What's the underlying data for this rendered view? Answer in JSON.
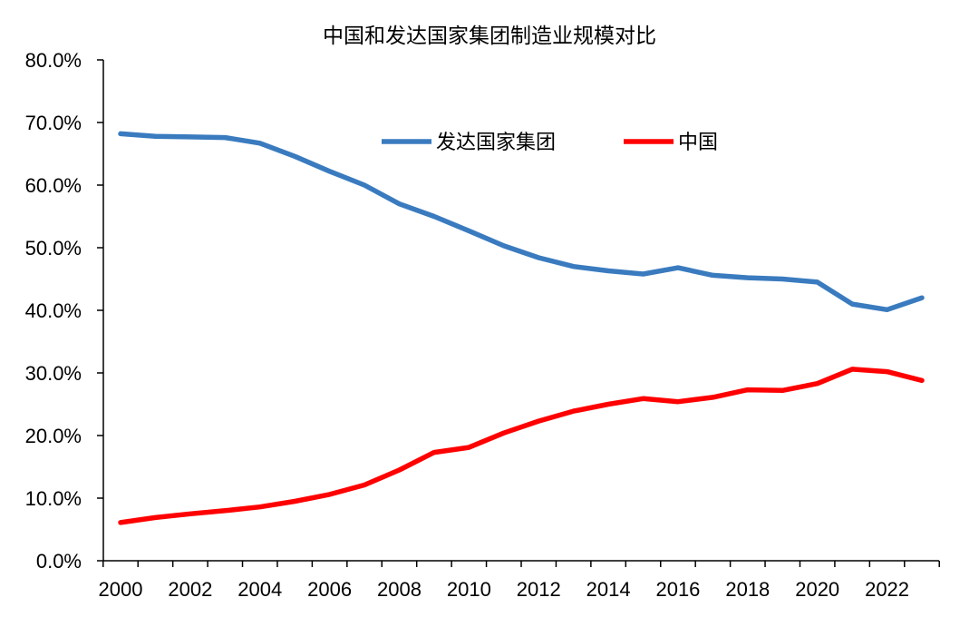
{
  "chart_data": {
    "type": "line",
    "title": "中国和发达国家集团制造业规模对比",
    "xlabel": "",
    "ylabel": "",
    "ylim": [
      0,
      80
    ],
    "y_ticks": [
      "0.0%",
      "10.0%",
      "20.0%",
      "30.0%",
      "40.0%",
      "50.0%",
      "60.0%",
      "70.0%",
      "80.0%"
    ],
    "x_ticks": [
      "2000",
      "2002",
      "2004",
      "2006",
      "2008",
      "2010",
      "2012",
      "2014",
      "2016",
      "2018",
      "2020",
      "2022"
    ],
    "x": [
      2000,
      2001,
      2002,
      2003,
      2004,
      2005,
      2006,
      2007,
      2008,
      2009,
      2010,
      2011,
      2012,
      2013,
      2014,
      2015,
      2016,
      2017,
      2018,
      2019,
      2020,
      2021,
      2022,
      2023
    ],
    "series": [
      {
        "name": "发达国家集团",
        "color": "#3a7bbf",
        "values": [
          68.2,
          67.8,
          67.7,
          67.6,
          66.7,
          64.6,
          62.2,
          60.0,
          57.0,
          55.0,
          52.7,
          50.3,
          48.4,
          47.0,
          46.3,
          45.8,
          46.8,
          45.6,
          45.2,
          45.0,
          44.5,
          41.0,
          40.1,
          42.0
        ]
      },
      {
        "name": "中国",
        "color": "#ff0000",
        "values": [
          6.1,
          6.9,
          7.5,
          8.0,
          8.6,
          9.5,
          10.6,
          12.1,
          14.5,
          17.3,
          18.1,
          20.4,
          22.3,
          23.9,
          25.0,
          25.9,
          25.4,
          26.1,
          27.3,
          27.2,
          28.3,
          30.6,
          30.2,
          28.8
        ]
      }
    ],
    "grid": false,
    "legend_position": "top-center"
  }
}
